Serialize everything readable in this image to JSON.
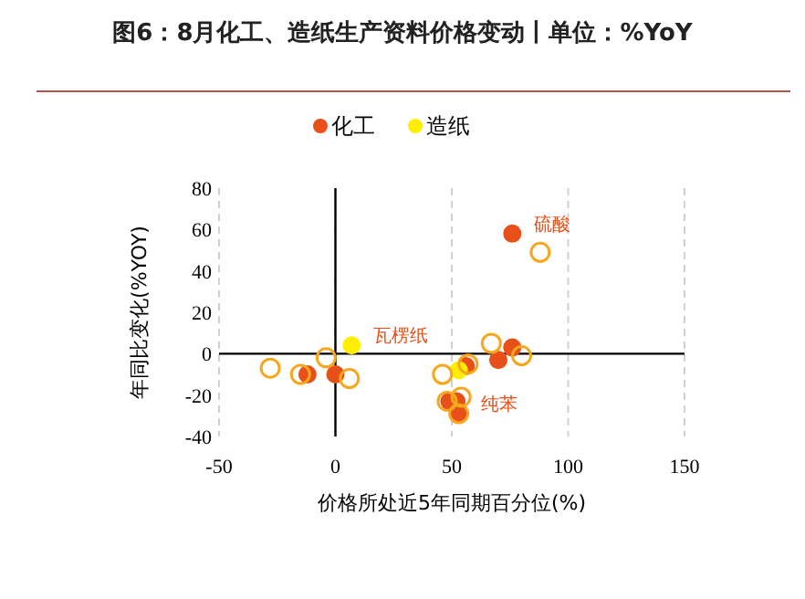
{
  "chart_data": {
    "type": "scatter",
    "title": "图6：8月化工、造纸生产资料价格变动丨单位：%YoY",
    "xlabel": "价格所处近5年同期百分位(%)",
    "ylabel": "年同比变化(%YOY)",
    "xlim": [
      -50,
      150
    ],
    "xticks": [
      -50,
      0,
      50,
      100,
      150
    ],
    "ylim": [
      -40,
      80
    ],
    "yticks": [
      -40,
      -20,
      0,
      20,
      40,
      60,
      80
    ],
    "grid": "x",
    "legend": "top",
    "marker": "circle",
    "ref_lines": [
      {
        "axis": "y",
        "value": 0,
        "color": "#000000"
      }
    ],
    "series": [
      {
        "name": "化工",
        "color": "#e8501a",
        "x": [
          76,
          70,
          76,
          56,
          49,
          52,
          53,
          -12,
          0
        ],
        "values": [
          58,
          -3,
          3,
          -6,
          -23,
          -23,
          -29,
          -10,
          -10
        ]
      },
      {
        "name": "造纸",
        "color": "#ffee00",
        "x": [
          7,
          53
        ],
        "values": [
          4,
          -8
        ]
      },
      {
        "color": "#f5a81e",
        "x": [
          -28,
          -15,
          -4,
          6,
          46,
          54,
          48,
          67,
          57,
          80,
          88,
          53
        ],
        "values": [
          -7,
          -10,
          -2,
          -12,
          -10,
          -21,
          -23,
          5,
          -5,
          -1,
          49,
          -29
        ]
      }
    ],
    "annotations": [
      {
        "text": "硫酸",
        "x": 76,
        "y": 58
      },
      {
        "text": "瓦楞纸",
        "x": 7,
        "y": 4
      },
      {
        "text": "纯苯",
        "x": 53,
        "y": -29
      }
    ]
  }
}
